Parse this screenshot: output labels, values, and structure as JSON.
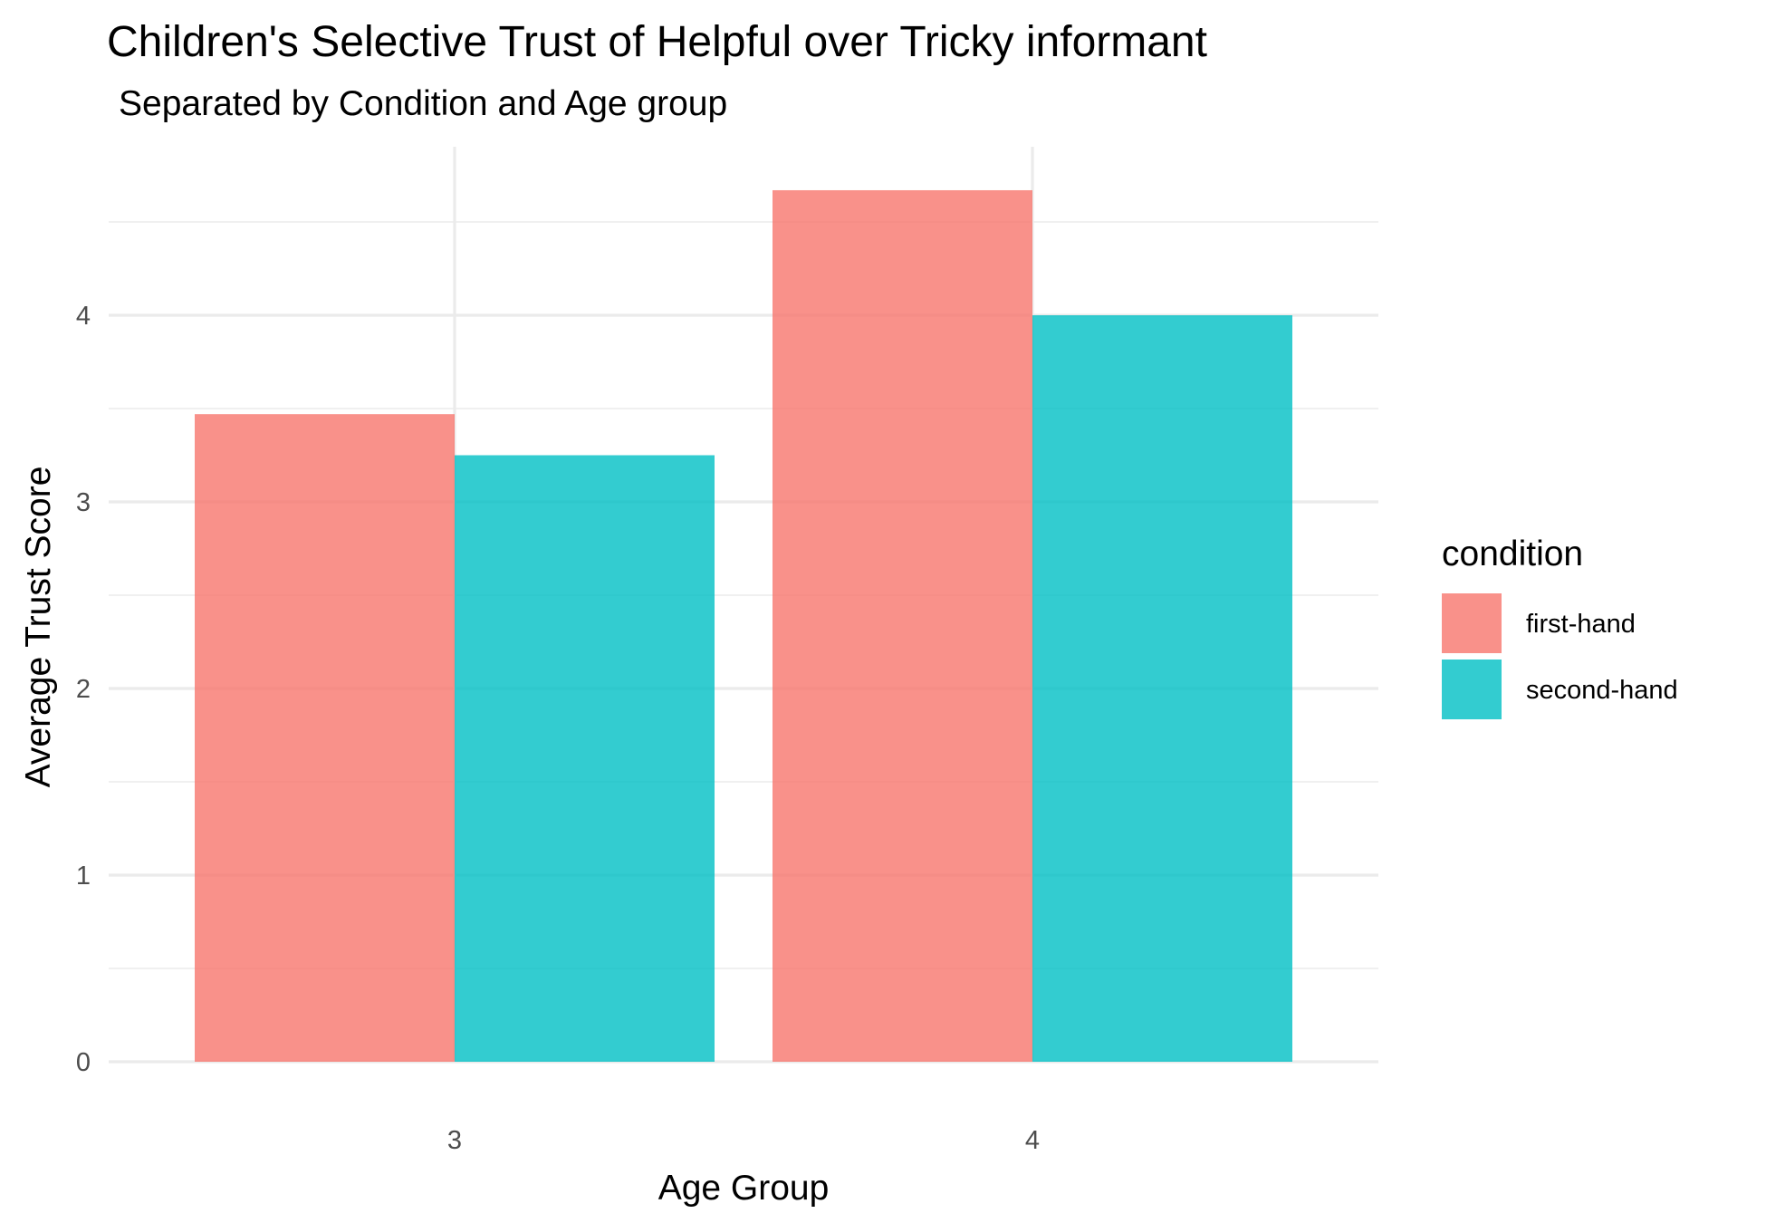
{
  "chart_data": {
    "type": "bar",
    "title": "Children's Selective Trust of Helpful over Tricky informant",
    "subtitle": "Separated by Condition and Age group",
    "xlabel": "Age Group",
    "ylabel": "Average Trust Score",
    "categories": [
      "3",
      "4"
    ],
    "series": [
      {
        "name": "first-hand",
        "values": [
          3.47,
          4.67
        ],
        "color": "#F8766D"
      },
      {
        "name": "second-hand",
        "values": [
          3.25,
          4.0
        ],
        "color": "#00BFC4"
      }
    ],
    "ylim": [
      0,
      4.9
    ],
    "yticks": [
      0,
      1,
      2,
      3,
      4
    ],
    "yticks_minor": [
      0.5,
      1.5,
      2.5,
      3.5,
      4.5
    ],
    "grid": true,
    "bar_position": "dodge",
    "bar_opacity": 0.8,
    "legend": {
      "title": "condition",
      "position": "right"
    }
  }
}
